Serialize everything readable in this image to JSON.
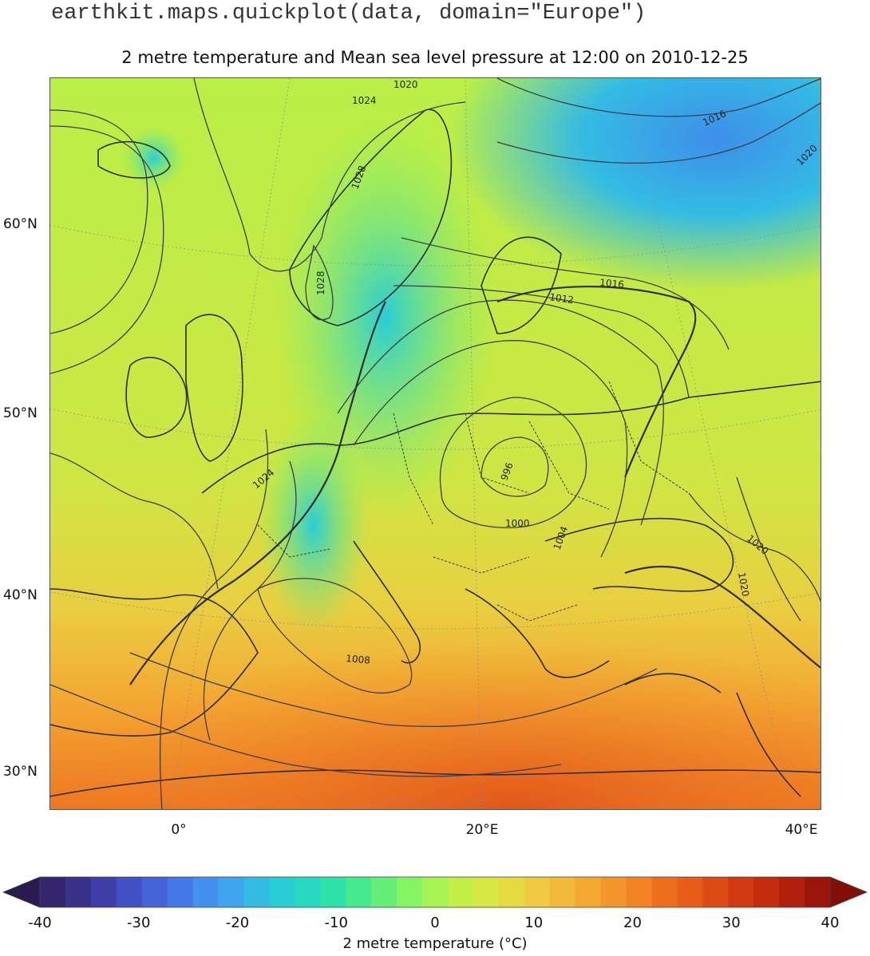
{
  "header": {
    "code": "earthkit.maps.quickplot(data, domain=\"Europe\")",
    "title": "2 metre temperature and Mean sea level pressure at 12:00 on 2010-12-25"
  },
  "map": {
    "lat_labels": [
      "60°N",
      "50°N",
      "40°N",
      "30°N"
    ],
    "lon_labels": [
      "0°",
      "20°E",
      "40°E"
    ],
    "isobar_labels": [
      "1020",
      "1024",
      "1016",
      "1020",
      "1028",
      "1028",
      "1016",
      "1012",
      "996",
      "1000",
      "1004",
      "1024",
      "1020",
      "1020",
      "1008"
    ]
  },
  "colorbar": {
    "label": "2 metre temperature (°C)",
    "ticks": [
      "-40",
      "-30",
      "-20",
      "-10",
      "0",
      "10",
      "20",
      "30",
      "40"
    ],
    "colors": [
      "#2b1a52",
      "#33256e",
      "#3a3189",
      "#3f3fa6",
      "#4150c2",
      "#4363d6",
      "#4478e6",
      "#4490f0",
      "#3ea6ee",
      "#33bbe4",
      "#29cdd4",
      "#25dac0",
      "#2ee3a8",
      "#45ea8f",
      "#64f078",
      "#86f563",
      "#a6f451",
      "#c1ef46",
      "#d6e743",
      "#e6da42",
      "#eecb40",
      "#f3ba3a",
      "#f5a833",
      "#f5962c",
      "#f38325",
      "#ee701f",
      "#e75d19",
      "#dd4b15",
      "#d13a11",
      "#c22b0e",
      "#b01e0c",
      "#9a140a",
      "#821007"
    ]
  }
}
